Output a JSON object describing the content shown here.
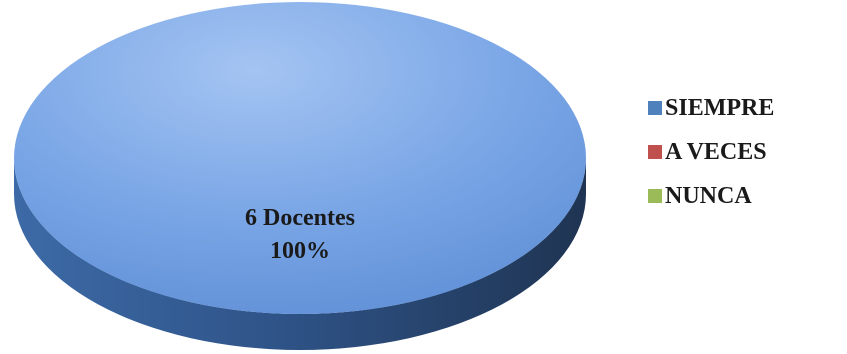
{
  "chart_data": {
    "type": "pie",
    "style": "3d",
    "categories": [
      "SIEMPRE",
      "A VECES",
      "NUNCA"
    ],
    "values": [
      6,
      0,
      0
    ],
    "percentages": [
      100,
      0,
      0
    ],
    "colors": [
      "#4f81bd",
      "#c0504d",
      "#9bbb59"
    ],
    "data_labels": [
      {
        "line1": "6 Docentes",
        "line2": "100%"
      }
    ],
    "legend": {
      "placement": "right",
      "entries": [
        "SIEMPRE",
        "A VECES",
        "NUNCA"
      ]
    }
  }
}
